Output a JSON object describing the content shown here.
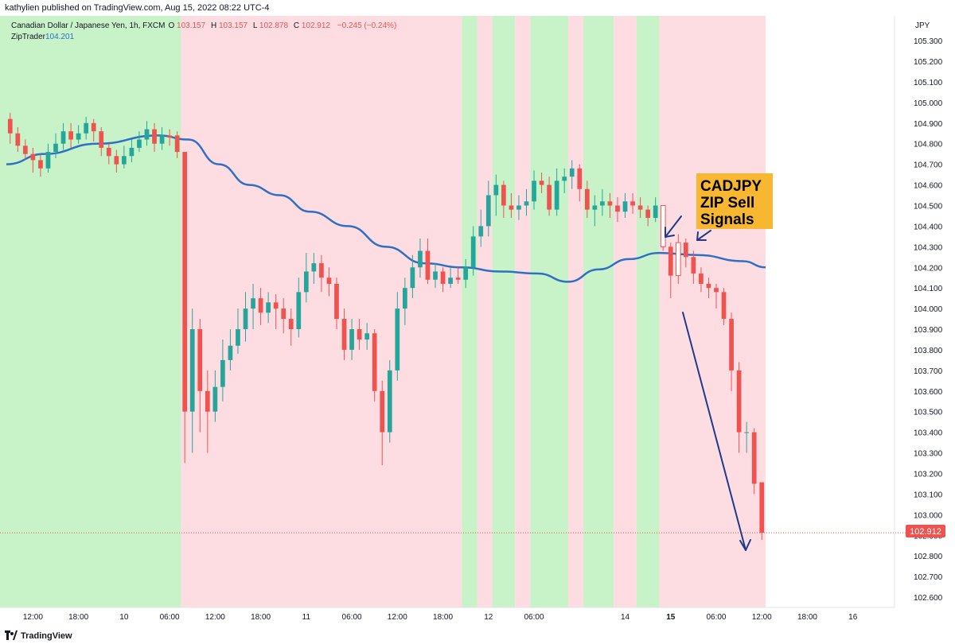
{
  "header": {
    "published": "kathylien published on TradingView.com, Aug 15, 2022 08:22 UTC-4"
  },
  "legend": {
    "symbol": "Canadian Dollar / Japanese Yen, 1h, FXCM",
    "o_label": "O",
    "o_value": "103.157",
    "h_label": "H",
    "h_value": "103.157",
    "l_label": "L",
    "l_value": "102.878",
    "c_label": "C",
    "c_value": "102.912",
    "change": "−0.245 (−0.24%)",
    "indicator_name": "ZipTrader",
    "indicator_value": "104.201"
  },
  "annotation": {
    "line1": "CADJPY",
    "line2": "ZIP Sell",
    "line3": "Signals"
  },
  "price_badge": "102.912",
  "footer": {
    "brand": "TradingView"
  },
  "colors": {
    "up": "#26a69a",
    "down": "#ef5350",
    "ma": "#2f6fc4",
    "bg_green": "#c8f2c8",
    "bg_red": "#fddde2",
    "annotation_bg": "#f7b731",
    "arrow": "#1e3a8a"
  },
  "chart_data": {
    "type": "candlestick",
    "timeframe": "1h",
    "y_axis_label": "JPY",
    "ylim": [
      102.55,
      105.42
    ],
    "y_ticks": [
      "105.300",
      "105.200",
      "105.100",
      "105.000",
      "104.900",
      "104.800",
      "104.700",
      "104.600",
      "104.500",
      "104.400",
      "104.300",
      "104.200",
      "104.100",
      "104.000",
      "103.900",
      "103.800",
      "103.700",
      "103.600",
      "103.500",
      "103.400",
      "103.300",
      "103.200",
      "103.100",
      "103.000",
      "102.900",
      "102.800",
      "102.700",
      "102.600"
    ],
    "x_ticks": [
      "12:00",
      "18:00",
      "10",
      "06:00",
      "12:00",
      "18:00",
      "11",
      "06:00",
      "12:00",
      "18:00",
      "12",
      "06:00",
      "14",
      "15",
      "06:00",
      "12:00",
      "18:00",
      "16"
    ],
    "x_tick_bars": [
      3,
      9,
      15,
      21,
      27,
      33,
      39,
      45,
      51,
      57,
      63,
      69,
      81,
      87,
      93,
      99,
      105,
      111
    ],
    "x_tick_bold": [
      false,
      false,
      false,
      false,
      false,
      false,
      false,
      false,
      false,
      false,
      false,
      false,
      false,
      true,
      false,
      false,
      false,
      false
    ],
    "last_price": 102.912,
    "candles": [
      [
        104.92,
        104.85,
        104.95,
        104.8
      ],
      [
        104.85,
        104.79,
        104.88,
        104.76
      ],
      [
        104.79,
        104.75,
        104.82,
        104.72
      ],
      [
        104.75,
        104.72,
        104.78,
        104.66
      ],
      [
        104.72,
        104.68,
        104.75,
        104.64
      ],
      [
        104.68,
        104.76,
        104.8,
        104.66
      ],
      [
        104.76,
        104.8,
        104.85,
        104.73
      ],
      [
        104.8,
        104.86,
        104.9,
        104.77
      ],
      [
        104.86,
        104.82,
        104.9,
        104.78
      ],
      [
        104.82,
        104.85,
        104.89,
        104.8
      ],
      [
        104.85,
        104.9,
        104.93,
        104.82
      ],
      [
        104.9,
        104.86,
        104.92,
        104.81
      ],
      [
        104.86,
        104.78,
        104.88,
        104.74
      ],
      [
        104.78,
        104.74,
        104.8,
        104.7
      ],
      [
        104.74,
        104.7,
        104.77,
        104.66
      ],
      [
        104.7,
        104.74,
        104.79,
        104.68
      ],
      [
        104.74,
        104.78,
        104.82,
        104.71
      ],
      [
        104.78,
        104.82,
        104.86,
        104.76
      ],
      [
        104.82,
        104.87,
        104.91,
        104.79
      ],
      [
        104.87,
        104.8,
        104.9,
        104.76
      ],
      [
        104.8,
        104.84,
        104.88,
        104.77
      ],
      [
        104.84,
        104.83,
        104.87,
        104.79
      ],
      [
        104.84,
        104.76,
        104.86,
        104.73
      ],
      [
        104.76,
        103.5,
        104.76,
        103.25
      ],
      [
        103.5,
        103.9,
        104.0,
        103.3
      ],
      [
        103.9,
        103.6,
        103.95,
        103.4
      ],
      [
        103.6,
        103.5,
        103.7,
        103.3
      ],
      [
        103.5,
        103.62,
        103.7,
        103.45
      ],
      [
        103.62,
        103.75,
        103.85,
        103.55
      ],
      [
        103.75,
        103.82,
        103.9,
        103.7
      ],
      [
        103.82,
        103.9,
        104.0,
        103.78
      ],
      [
        103.9,
        104.0,
        104.08,
        103.84
      ],
      [
        104.0,
        104.05,
        104.12,
        103.9
      ],
      [
        104.05,
        103.98,
        104.1,
        103.92
      ],
      [
        103.98,
        104.03,
        104.08,
        103.93
      ],
      [
        104.03,
        104.0,
        104.07,
        103.9
      ],
      [
        104.0,
        103.95,
        104.05,
        103.88
      ],
      [
        103.95,
        103.9,
        104.0,
        103.82
      ],
      [
        103.9,
        104.08,
        104.15,
        103.86
      ],
      [
        104.08,
        104.18,
        104.27,
        104.03
      ],
      [
        104.18,
        104.22,
        104.27,
        104.12
      ],
      [
        104.22,
        104.15,
        104.26,
        104.08
      ],
      [
        104.15,
        104.12,
        104.2,
        104.06
      ],
      [
        104.12,
        103.95,
        104.15,
        103.9
      ],
      [
        103.95,
        103.8,
        104.0,
        103.75
      ],
      [
        103.8,
        103.9,
        103.95,
        103.75
      ],
      [
        103.9,
        103.85,
        103.95,
        103.8
      ],
      [
        103.85,
        103.88,
        103.93,
        103.8
      ],
      [
        103.88,
        103.6,
        103.9,
        103.55
      ],
      [
        103.6,
        103.4,
        103.65,
        103.24
      ],
      [
        103.4,
        103.7,
        103.75,
        103.35
      ],
      [
        103.7,
        104.0,
        104.08,
        103.65
      ],
      [
        104.0,
        104.1,
        104.15,
        103.92
      ],
      [
        104.1,
        104.2,
        104.26,
        104.05
      ],
      [
        104.2,
        104.28,
        104.34,
        104.15
      ],
      [
        104.28,
        104.14,
        104.34,
        104.12
      ],
      [
        104.14,
        104.18,
        104.22,
        104.1
      ],
      [
        104.18,
        104.12,
        104.2,
        104.08
      ],
      [
        104.12,
        104.15,
        104.2,
        104.1
      ],
      [
        104.15,
        104.14,
        104.2,
        104.12
      ],
      [
        104.14,
        104.2,
        104.24,
        104.1
      ],
      [
        104.2,
        104.35,
        104.4,
        104.16
      ],
      [
        104.35,
        104.4,
        104.48,
        104.3
      ],
      [
        104.4,
        104.55,
        104.62,
        104.35
      ],
      [
        104.55,
        104.6,
        104.65,
        104.45
      ],
      [
        104.6,
        104.5,
        104.62,
        104.44
      ],
      [
        104.5,
        104.48,
        104.56,
        104.44
      ],
      [
        104.48,
        104.5,
        104.55,
        104.43
      ],
      [
        104.5,
        104.52,
        104.58,
        104.45
      ],
      [
        104.52,
        104.62,
        104.67,
        104.48
      ],
      [
        104.62,
        104.6,
        104.66,
        104.56
      ],
      [
        104.6,
        104.48,
        104.64,
        104.45
      ],
      [
        104.48,
        104.62,
        104.68,
        104.45
      ],
      [
        104.62,
        104.64,
        104.68,
        104.56
      ],
      [
        104.64,
        104.68,
        104.72,
        104.58
      ],
      [
        104.68,
        104.58,
        104.7,
        104.52
      ],
      [
        104.58,
        104.48,
        104.62,
        104.44
      ],
      [
        104.48,
        104.5,
        104.55,
        104.4
      ],
      [
        104.5,
        104.52,
        104.58,
        104.45
      ],
      [
        104.52,
        104.5,
        104.56,
        104.44
      ],
      [
        104.5,
        104.47,
        104.54,
        104.42
      ],
      [
        104.47,
        104.52,
        104.56,
        104.44
      ],
      [
        104.52,
        104.5,
        104.56,
        104.46
      ],
      [
        104.5,
        104.48,
        104.54,
        104.44
      ],
      [
        104.48,
        104.44,
        104.5,
        104.4
      ],
      [
        104.44,
        104.5,
        104.54,
        104.42
      ],
      [
        104.5,
        104.3,
        104.5,
        104.28
      ],
      [
        104.3,
        104.16,
        104.32,
        104.05
      ],
      [
        104.16,
        104.32,
        104.36,
        104.12
      ],
      [
        104.32,
        104.25,
        104.34,
        104.2
      ],
      [
        104.25,
        104.17,
        104.28,
        104.12
      ],
      [
        104.17,
        104.12,
        104.2,
        104.08
      ],
      [
        104.12,
        104.1,
        104.15,
        104.05
      ],
      [
        104.1,
        104.08,
        104.12,
        104.0
      ],
      [
        104.08,
        103.95,
        104.1,
        103.92
      ],
      [
        103.95,
        103.7,
        103.98,
        103.6
      ],
      [
        103.7,
        103.4,
        103.74,
        103.3
      ],
      [
        103.4,
        103.4,
        103.45,
        103.3
      ],
      [
        103.4,
        103.15,
        103.42,
        103.1
      ],
      [
        103.157,
        102.912,
        103.157,
        102.878
      ]
    ],
    "background_regions": [
      {
        "from": 0,
        "to": 23,
        "color": "green"
      },
      {
        "from": 23,
        "to": 60,
        "color": "red"
      },
      {
        "from": 60,
        "to": 62,
        "color": "green"
      },
      {
        "from": 62,
        "to": 64,
        "color": "red"
      },
      {
        "from": 64,
        "to": 67,
        "color": "green"
      },
      {
        "from": 67,
        "to": 69,
        "color": "red"
      },
      {
        "from": 69,
        "to": 74,
        "color": "green"
      },
      {
        "from": 74,
        "to": 76,
        "color": "red"
      },
      {
        "from": 76,
        "to": 80,
        "color": "green"
      },
      {
        "from": 80,
        "to": 83,
        "color": "red"
      },
      {
        "from": 83,
        "to": 86,
        "color": "green"
      },
      {
        "from": 86,
        "to": 100,
        "color": "red"
      }
    ],
    "moving_average": {
      "name": "ZipTrader",
      "points": [
        [
          0,
          104.7
        ],
        [
          5,
          104.75
        ],
        [
          12,
          104.8
        ],
        [
          20,
          104.84
        ],
        [
          24,
          104.82
        ],
        [
          28,
          104.7
        ],
        [
          32,
          104.6
        ],
        [
          36,
          104.55
        ],
        [
          40,
          104.47
        ],
        [
          45,
          104.4
        ],
        [
          50,
          104.3
        ],
        [
          55,
          104.22
        ],
        [
          60,
          104.2
        ],
        [
          65,
          104.18
        ],
        [
          70,
          104.17
        ],
        [
          74,
          104.13
        ],
        [
          78,
          104.19
        ],
        [
          82,
          104.24
        ],
        [
          86,
          104.27
        ],
        [
          91,
          104.26
        ],
        [
          97,
          104.23
        ],
        [
          100,
          104.2
        ]
      ]
    },
    "signal_markers": [
      86,
      88
    ]
  }
}
